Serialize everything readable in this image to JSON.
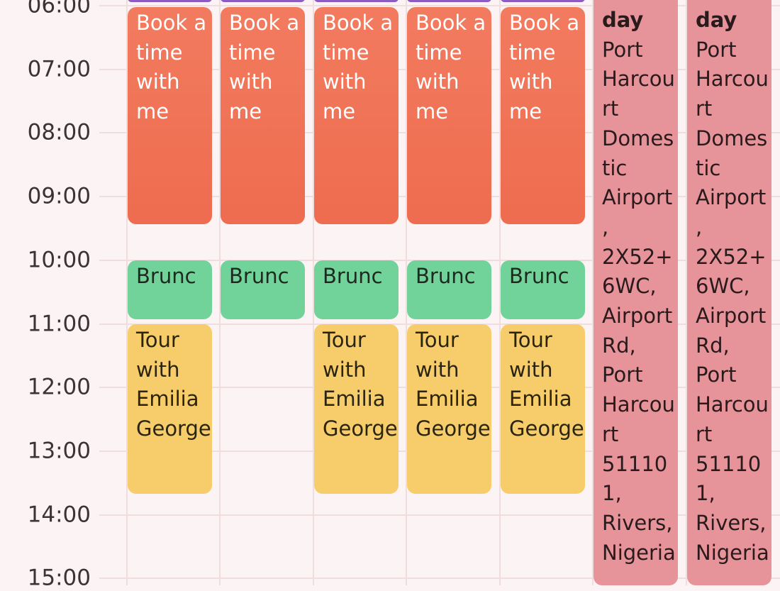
{
  "times": [
    "06:00",
    "07:00",
    "08:00",
    "09:00",
    "10:00",
    "11:00",
    "12:00",
    "13:00",
    "14:00",
    "15:00"
  ],
  "events": {
    "book": "Book a time with me",
    "brunch": "Brunc",
    "tour": "Tour with Emilia George",
    "allday_title": "day",
    "allday_location": "Port Harcourt Domestic Airport, 2X52+6WC, Airport Rd, Port Harcourt 511101, Rivers, Nigeria"
  }
}
